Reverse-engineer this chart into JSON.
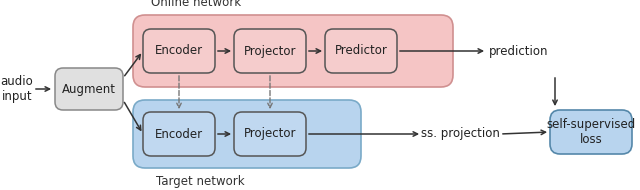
{
  "bg_color": "#ffffff",
  "online_bg_color": "#f5c5c5",
  "online_bg_edge": "#d09090",
  "target_bg_color": "#b8d4ee",
  "target_bg_edge": "#7aaac8",
  "augment_bg": "#e0e0e0",
  "augment_edge": "#888888",
  "online_box_bg": "#f5cccc",
  "online_box_edge": "#555555",
  "target_box_bg": "#c0d8f0",
  "target_box_edge": "#555555",
  "loss_bg": "#b8d4ee",
  "loss_edge": "#5588aa",
  "arrow_color": "#333333",
  "dashed_color": "#777777",
  "text_color": "#222222",
  "label_color": "#333333",
  "online_label": "Online network",
  "target_label": "Target network",
  "augment_label": "Augment",
  "audio_label": "audio\ninput",
  "online_enc_label": "Encoder",
  "online_proj_label": "Projector",
  "online_pred_label": "Predictor",
  "target_enc_label": "Encoder",
  "target_proj_label": "Projector",
  "prediction_label": "prediction",
  "ss_proj_label": "ss. projection",
  "loss_label": "self-supervised\nloss",
  "font_size": 8.5
}
